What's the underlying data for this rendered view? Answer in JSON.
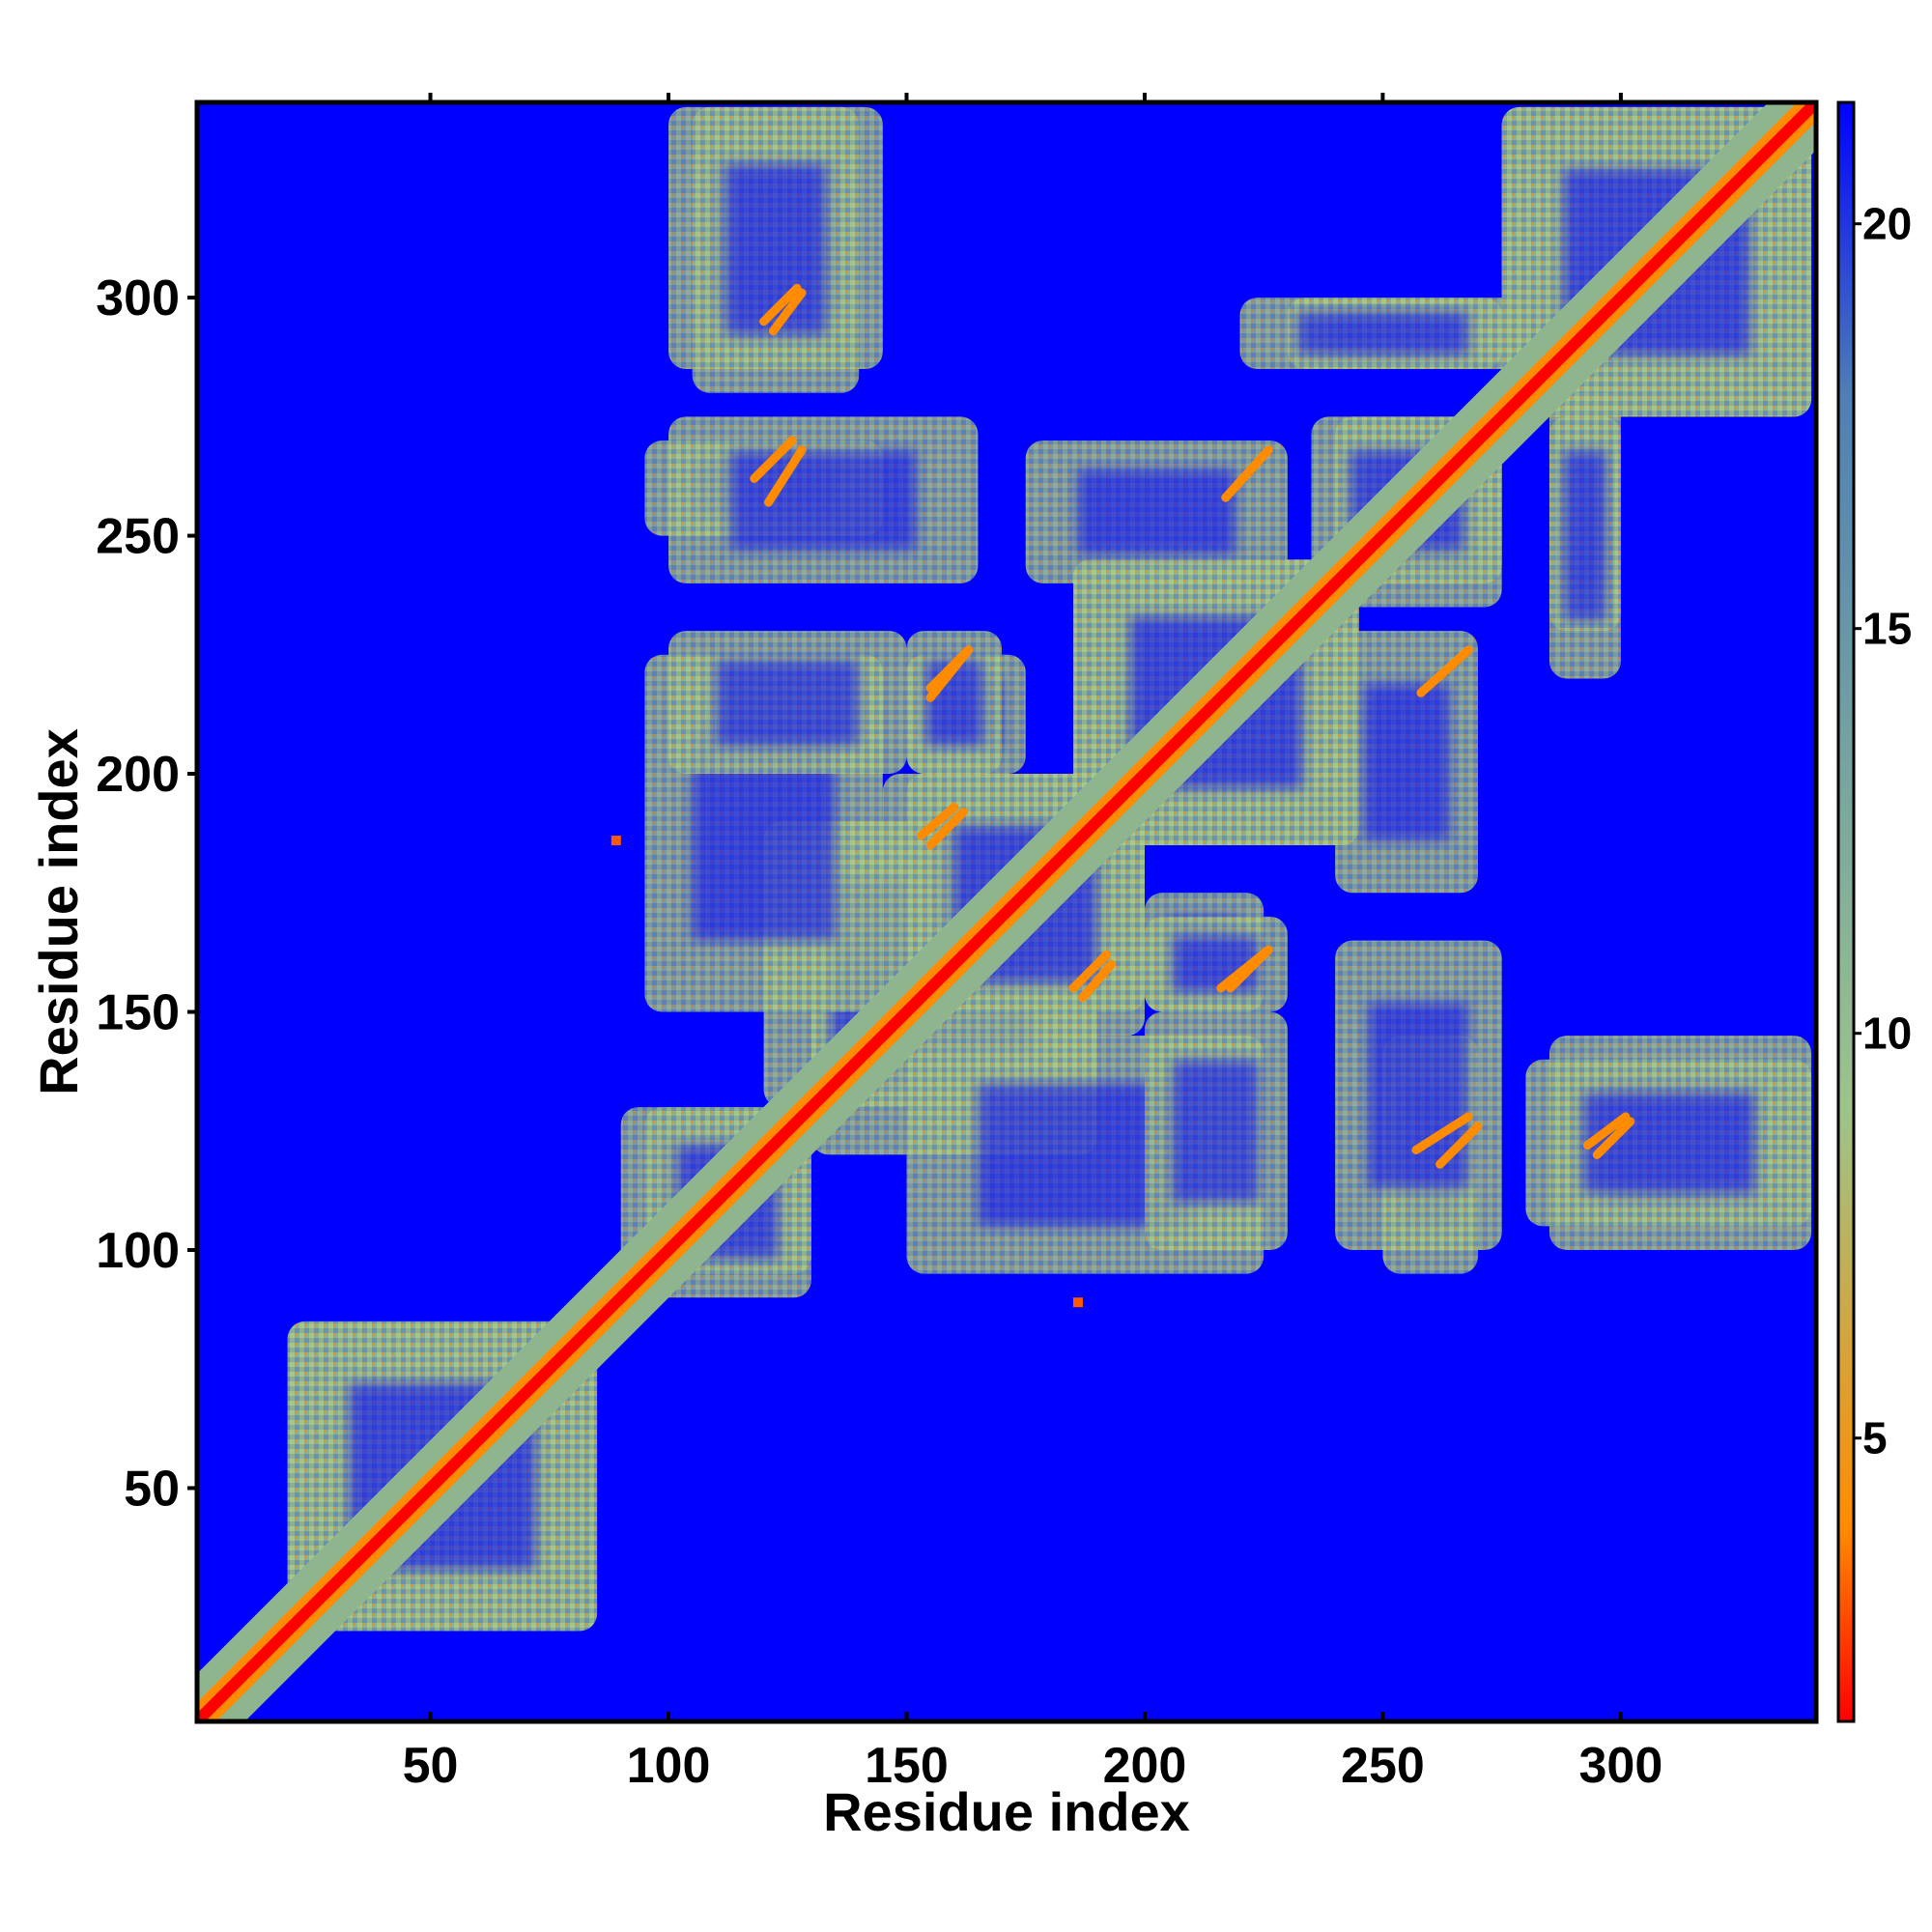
{
  "chart_data": {
    "type": "heatmap",
    "title": "",
    "xlabel": "Residue index",
    "ylabel": "Residue index",
    "xlim": [
      1,
      341
    ],
    "ylim": [
      1,
      341
    ],
    "x_ticks": [
      50,
      100,
      150,
      200,
      250,
      300
    ],
    "y_ticks": [
      50,
      100,
      150,
      200,
      250,
      300
    ],
    "colorbar": {
      "range": [
        1.5,
        21.5
      ],
      "ticks": [
        5,
        10,
        15,
        20
      ],
      "colors": [
        "#ff0000",
        "#ff8c00",
        "#9cc48c",
        "#4f7fb5",
        "#0000ff"
      ]
    },
    "background_color": "#0000ff",
    "contact_regions": [
      {
        "x": [
          20,
          85
        ],
        "y": [
          20,
          85
        ]
      },
      {
        "x": [
          90,
          130
        ],
        "y": [
          95,
          130
        ]
      },
      {
        "x": [
          130,
          190
        ],
        "y": [
          120,
          190
        ]
      },
      {
        "x": [
          185,
          245
        ],
        "y": [
          185,
          245
        ]
      },
      {
        "x": [
          240,
          275
        ],
        "y": [
          235,
          275
        ]
      },
      {
        "x": [
          275,
          340
        ],
        "y": [
          275,
          340
        ]
      },
      {
        "x": [
          95,
          145
        ],
        "y": [
          150,
          225
        ]
      },
      {
        "x": [
          95,
          145
        ],
        "y": [
          250,
          270
        ]
      },
      {
        "x": [
          100,
          145
        ],
        "y": [
          285,
          340
        ]
      },
      {
        "x": [
          145,
          200
        ],
        "y": [
          150,
          200
        ]
      },
      {
        "x": [
          150,
          175
        ],
        "y": [
          200,
          225
        ]
      },
      {
        "x": [
          175,
          230
        ],
        "y": [
          240,
          270
        ]
      },
      {
        "x": [
          200,
          230
        ],
        "y": [
          150,
          170
        ]
      },
      {
        "x": [
          240,
          275
        ],
        "y": [
          100,
          165
        ]
      },
      {
        "x": [
          200,
          230
        ],
        "y": [
          100,
          150
        ]
      },
      {
        "x": [
          280,
          340
        ],
        "y": [
          105,
          140
        ]
      },
      {
        "x": [
          230,
          275
        ],
        "y": [
          285,
          300
        ]
      },
      {
        "x": [
          285,
          300
        ],
        "y": [
          220,
          280
        ]
      }
    ],
    "short_contacts": [
      {
        "x": [
          217,
          226
        ],
        "y": [
          258,
          268
        ]
      },
      {
        "x": [
          155,
          163
        ],
        "y": [
          218,
          226
        ]
      },
      {
        "x": [
          153,
          160
        ],
        "y": [
          187,
          193
        ]
      },
      {
        "x": [
          216,
          226
        ],
        "y": [
          155,
          163
        ]
      },
      {
        "x": [
          185,
          192
        ],
        "y": [
          155,
          162
        ]
      },
      {
        "x": [
          262,
          270
        ],
        "y": [
          118,
          126
        ]
      },
      {
        "x": [
          295,
          302
        ],
        "y": [
          120,
          127
        ]
      },
      {
        "x": [
          121,
          128
        ],
        "y": [
          257,
          268
        ]
      },
      {
        "x": [
          122,
          128
        ],
        "y": [
          293,
          301
        ]
      },
      {
        "x": [
          300,
          315
        ],
        "y": [
          300,
          318
        ]
      },
      {
        "x": [
          312,
          325
        ],
        "y": [
          312,
          325
        ]
      }
    ],
    "isolated_points": [
      {
        "x": 89,
        "y": 186
      },
      {
        "x": 186,
        "y": 89
      }
    ]
  }
}
